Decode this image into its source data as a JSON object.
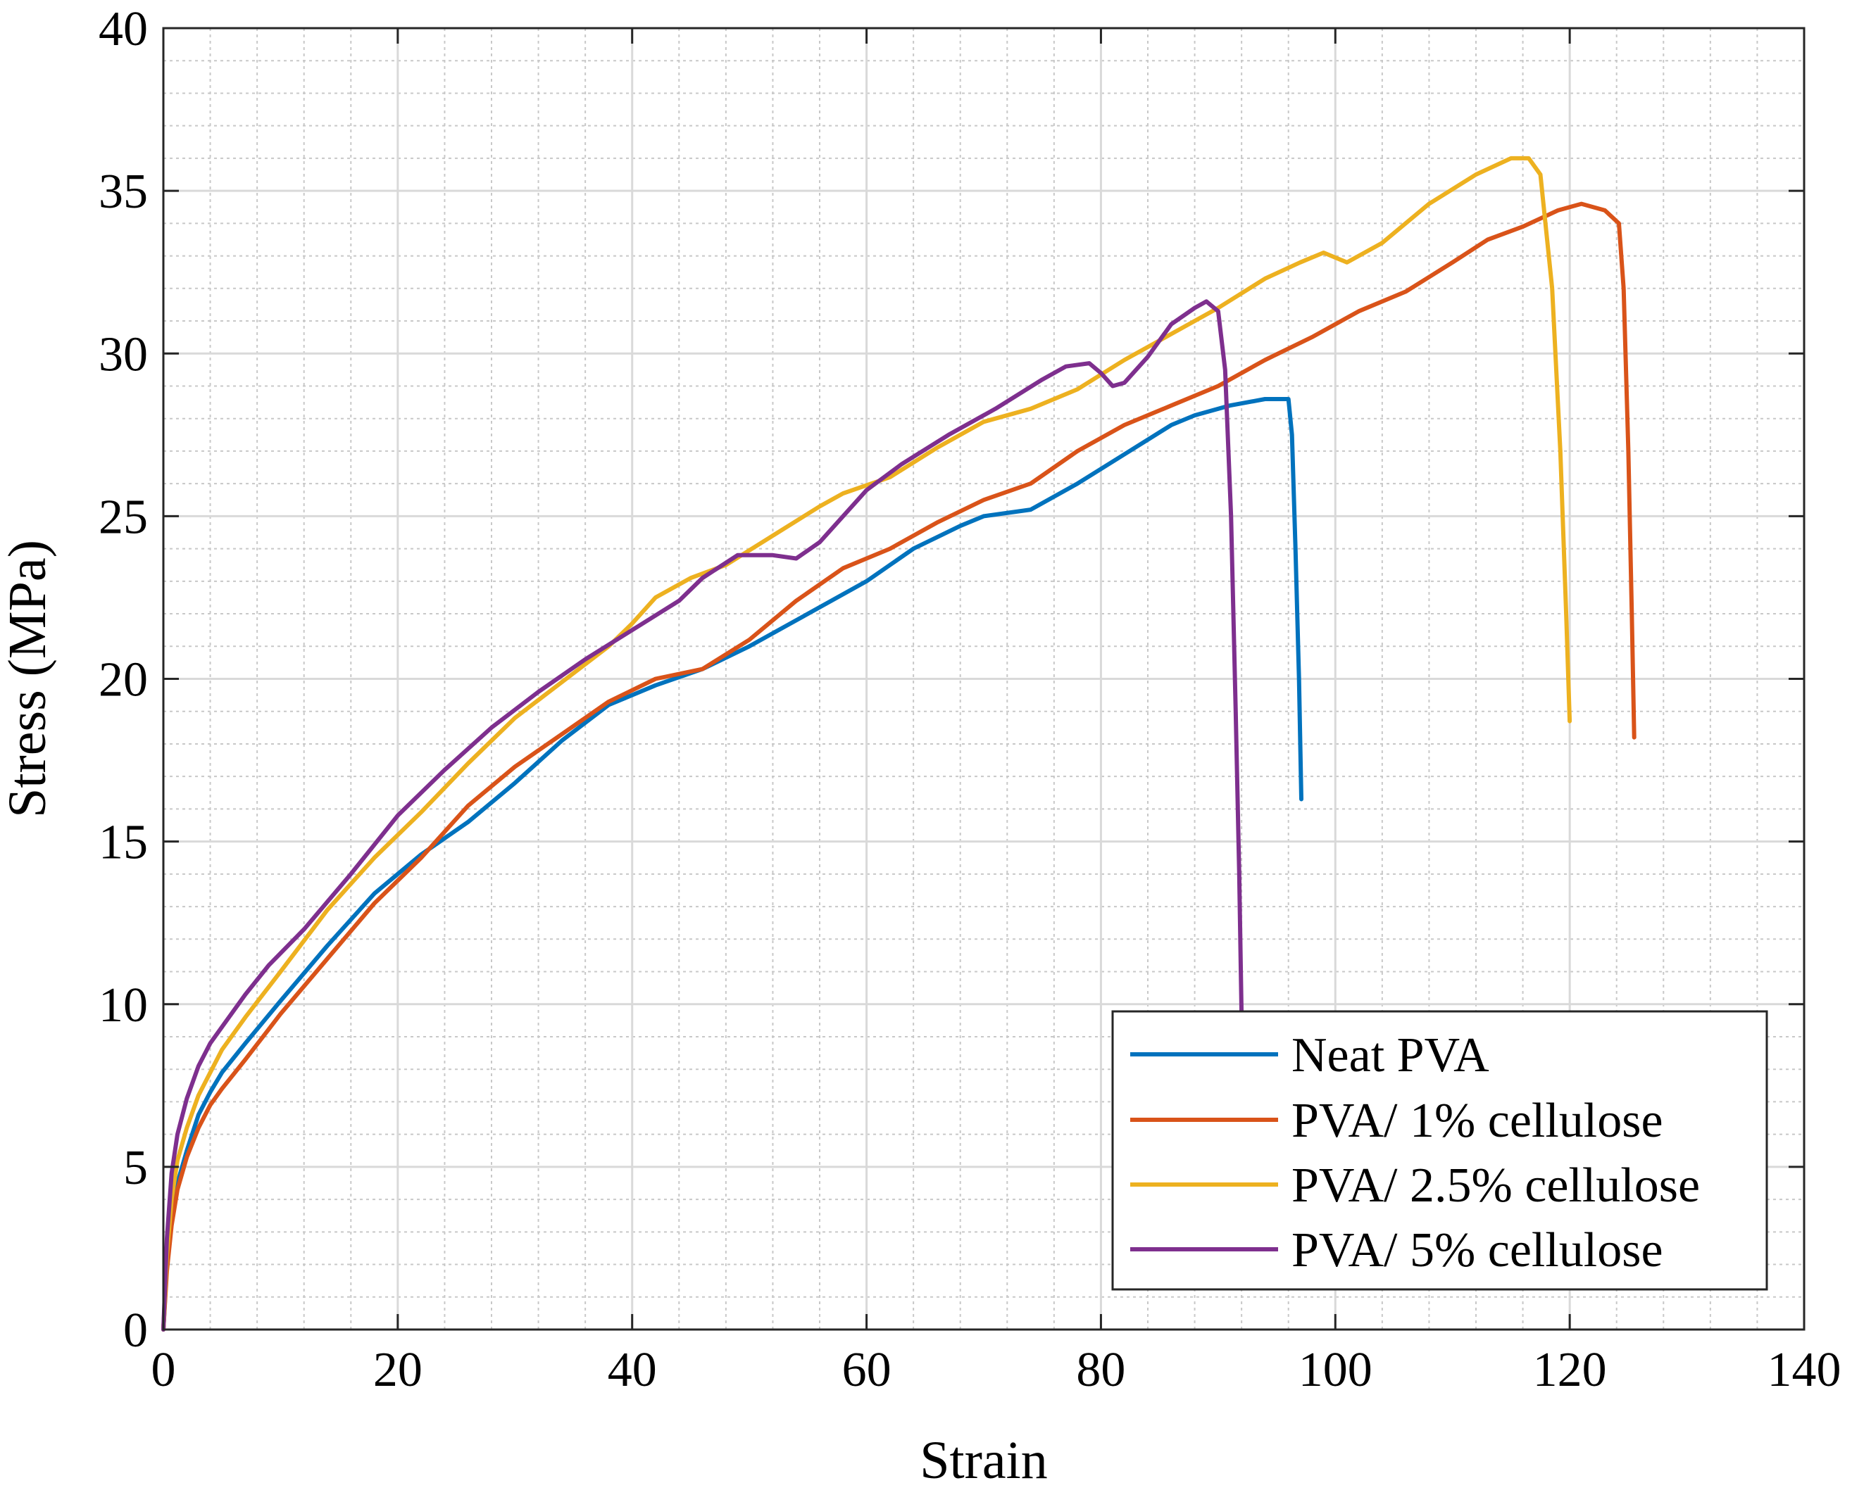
{
  "chart_data": {
    "type": "line",
    "title": "",
    "xlabel": "Strain",
    "ylabel": "Stress (MPa)",
    "xlim": [
      0,
      140
    ],
    "ylim": [
      0,
      40
    ],
    "xticks": [
      0,
      20,
      40,
      60,
      80,
      100,
      120,
      140
    ],
    "yticks": [
      0,
      5,
      10,
      15,
      20,
      25,
      30,
      35,
      40
    ],
    "grid": true,
    "minor_grid": true,
    "legend_position": "bottom-right",
    "series": [
      {
        "name": "Neat PVA",
        "color": "#0072BD",
        "points": [
          [
            0,
            0
          ],
          [
            0.3,
            2
          ],
          [
            0.7,
            3.5
          ],
          [
            1.2,
            4.5
          ],
          [
            2,
            5.5
          ],
          [
            3,
            6.6
          ],
          [
            4,
            7.3
          ],
          [
            5,
            7.9
          ],
          [
            7,
            8.8
          ],
          [
            10,
            10.1
          ],
          [
            14,
            11.8
          ],
          [
            18,
            13.4
          ],
          [
            22,
            14.6
          ],
          [
            26,
            15.6
          ],
          [
            30,
            16.8
          ],
          [
            34,
            18.1
          ],
          [
            38,
            19.2
          ],
          [
            42,
            19.8
          ],
          [
            46,
            20.3
          ],
          [
            50,
            21.0
          ],
          [
            55,
            22.0
          ],
          [
            60,
            23.0
          ],
          [
            64,
            24.0
          ],
          [
            68,
            24.7
          ],
          [
            70,
            25.0
          ],
          [
            74,
            25.2
          ],
          [
            78,
            26.0
          ],
          [
            82,
            26.9
          ],
          [
            86,
            27.8
          ],
          [
            88,
            28.1
          ],
          [
            91,
            28.4
          ],
          [
            94,
            28.6
          ],
          [
            96,
            28.6
          ],
          [
            96.3,
            27.5
          ],
          [
            96.6,
            24
          ],
          [
            96.9,
            20
          ],
          [
            97.1,
            16.3
          ]
        ]
      },
      {
        "name": "PVA/ 1% cellulose",
        "color": "#D95319",
        "points": [
          [
            0,
            0
          ],
          [
            0.3,
            1.8
          ],
          [
            0.7,
            3.2
          ],
          [
            1.2,
            4.3
          ],
          [
            2,
            5.3
          ],
          [
            3,
            6.2
          ],
          [
            4,
            6.9
          ],
          [
            5,
            7.4
          ],
          [
            7,
            8.3
          ],
          [
            10,
            9.7
          ],
          [
            14,
            11.4
          ],
          [
            18,
            13.1
          ],
          [
            22,
            14.5
          ],
          [
            26,
            16.1
          ],
          [
            30,
            17.3
          ],
          [
            34,
            18.3
          ],
          [
            38,
            19.3
          ],
          [
            42,
            20.0
          ],
          [
            46,
            20.3
          ],
          [
            50,
            21.2
          ],
          [
            54,
            22.4
          ],
          [
            58,
            23.4
          ],
          [
            62,
            24.0
          ],
          [
            66,
            24.8
          ],
          [
            70,
            25.5
          ],
          [
            74,
            26.0
          ],
          [
            78,
            27.0
          ],
          [
            82,
            27.8
          ],
          [
            86,
            28.4
          ],
          [
            90,
            29.0
          ],
          [
            94,
            29.8
          ],
          [
            98,
            30.5
          ],
          [
            102,
            31.3
          ],
          [
            106,
            31.9
          ],
          [
            110,
            32.8
          ],
          [
            113,
            33.5
          ],
          [
            116,
            33.9
          ],
          [
            119,
            34.4
          ],
          [
            121,
            34.6
          ],
          [
            123,
            34.4
          ],
          [
            124.2,
            34.0
          ],
          [
            124.6,
            32
          ],
          [
            125,
            27
          ],
          [
            125.3,
            22
          ],
          [
            125.5,
            18.2
          ]
        ]
      },
      {
        "name": "PVA/ 2.5% cellulose",
        "color": "#EDB120",
        "points": [
          [
            0,
            0
          ],
          [
            0.3,
            2.3
          ],
          [
            0.7,
            4
          ],
          [
            1.2,
            5.2
          ],
          [
            2,
            6.2
          ],
          [
            3,
            7.2
          ],
          [
            4,
            7.9
          ],
          [
            5,
            8.6
          ],
          [
            7,
            9.6
          ],
          [
            10,
            11.0
          ],
          [
            14,
            12.9
          ],
          [
            18,
            14.5
          ],
          [
            22,
            15.9
          ],
          [
            26,
            17.4
          ],
          [
            30,
            18.8
          ],
          [
            34,
            19.9
          ],
          [
            38,
            21.0
          ],
          [
            40,
            21.7
          ],
          [
            42,
            22.5
          ],
          [
            45,
            23.1
          ],
          [
            48,
            23.5
          ],
          [
            52,
            24.4
          ],
          [
            56,
            25.3
          ],
          [
            58,
            25.7
          ],
          [
            62,
            26.2
          ],
          [
            66,
            27.1
          ],
          [
            70,
            27.9
          ],
          [
            74,
            28.3
          ],
          [
            78,
            28.9
          ],
          [
            82,
            29.8
          ],
          [
            86,
            30.6
          ],
          [
            90,
            31.4
          ],
          [
            94,
            32.3
          ],
          [
            97,
            32.8
          ],
          [
            99,
            33.1
          ],
          [
            101,
            32.8
          ],
          [
            104,
            33.4
          ],
          [
            108,
            34.6
          ],
          [
            112,
            35.5
          ],
          [
            115,
            36.0
          ],
          [
            116.5,
            36.0
          ],
          [
            117.5,
            35.5
          ],
          [
            118.5,
            32
          ],
          [
            119.2,
            27
          ],
          [
            119.7,
            22
          ],
          [
            120,
            18.7
          ]
        ]
      },
      {
        "name": "PVA/ 5% cellulose",
        "color": "#7E2F8E",
        "points": [
          [
            0,
            0
          ],
          [
            0.3,
            2.8
          ],
          [
            0.7,
            4.8
          ],
          [
            1.2,
            6
          ],
          [
            2,
            7.1
          ],
          [
            3,
            8.1
          ],
          [
            4,
            8.8
          ],
          [
            5,
            9.3
          ],
          [
            7,
            10.3
          ],
          [
            9,
            11.2
          ],
          [
            12,
            12.3
          ],
          [
            16,
            14.0
          ],
          [
            20,
            15.8
          ],
          [
            24,
            17.2
          ],
          [
            28,
            18.5
          ],
          [
            32,
            19.6
          ],
          [
            36,
            20.6
          ],
          [
            40,
            21.5
          ],
          [
            44,
            22.4
          ],
          [
            46,
            23.1
          ],
          [
            49,
            23.8
          ],
          [
            52,
            23.8
          ],
          [
            54,
            23.7
          ],
          [
            56,
            24.2
          ],
          [
            58,
            25.0
          ],
          [
            60,
            25.8
          ],
          [
            63,
            26.6
          ],
          [
            67,
            27.5
          ],
          [
            71,
            28.3
          ],
          [
            75,
            29.2
          ],
          [
            77,
            29.6
          ],
          [
            79,
            29.7
          ],
          [
            80,
            29.4
          ],
          [
            81,
            29.0
          ],
          [
            82,
            29.1
          ],
          [
            84,
            29.9
          ],
          [
            86,
            30.9
          ],
          [
            88,
            31.4
          ],
          [
            89,
            31.6
          ],
          [
            90,
            31.3
          ],
          [
            90.6,
            29.5
          ],
          [
            91.1,
            25
          ],
          [
            91.5,
            19
          ],
          [
            91.8,
            14
          ],
          [
            92,
            9.7
          ]
        ]
      }
    ]
  }
}
